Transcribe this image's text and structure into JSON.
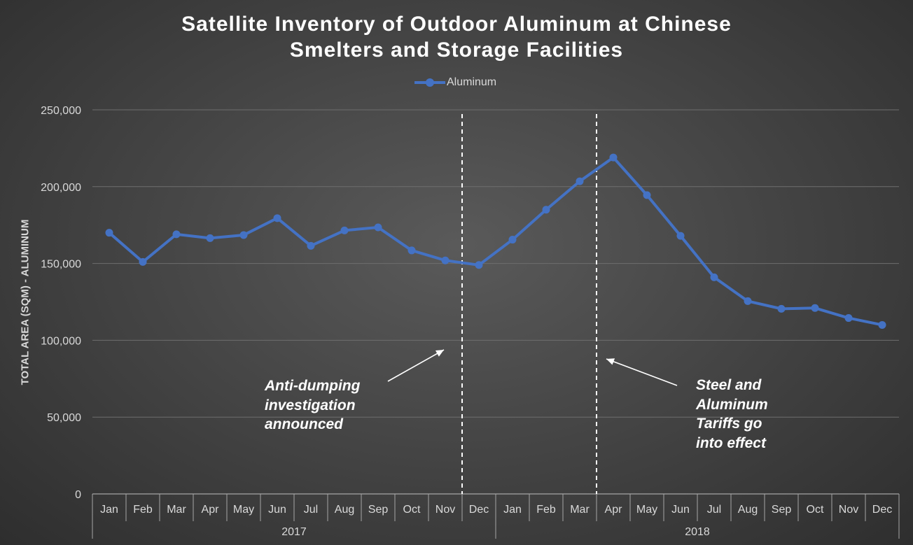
{
  "chart_data": {
    "type": "line",
    "title": [
      "Satellite Inventory of Outdoor Aluminum at Chinese",
      "Smelters and Storage Facilities"
    ],
    "ylabel": "TOTAL AREA (SQM) - ALUMINUM",
    "xlabel": "",
    "ylim": [
      0,
      250000
    ],
    "yticks": [
      0,
      50000,
      100000,
      150000,
      200000,
      250000
    ],
    "ytick_labels": [
      "0",
      "50,000",
      "100,000",
      "150,000",
      "200,000",
      "250,000"
    ],
    "grid": true,
    "legend_position": "top-center",
    "categories": [
      "Jan",
      "Feb",
      "Mar",
      "Apr",
      "May",
      "Jun",
      "Jul",
      "Aug",
      "Sep",
      "Oct",
      "Nov",
      "Dec",
      "Jan",
      "Feb",
      "Mar",
      "Apr",
      "May",
      "Jun",
      "Jul",
      "Aug",
      "Sep",
      "Oct",
      "Nov",
      "Dec"
    ],
    "groups": [
      {
        "label": "2017",
        "count": 12
      },
      {
        "label": "2018",
        "count": 12
      }
    ],
    "series": [
      {
        "name": "Aluminum",
        "color": "#4472c4",
        "values": [
          170000,
          151000,
          169000,
          166500,
          168500,
          179500,
          161500,
          171500,
          173500,
          158500,
          152000,
          149000,
          165500,
          185000,
          203500,
          219000,
          194500,
          168000,
          141000,
          125500,
          120500,
          121000,
          114500,
          110000
        ]
      }
    ],
    "annotations": [
      {
        "text": "Anti-dumping\ninvestigation\nannounced",
        "line_after_index": 10
      },
      {
        "text": "Steel and\nAluminum\nTariffs go\ninto effect",
        "line_after_index": 14
      }
    ]
  }
}
